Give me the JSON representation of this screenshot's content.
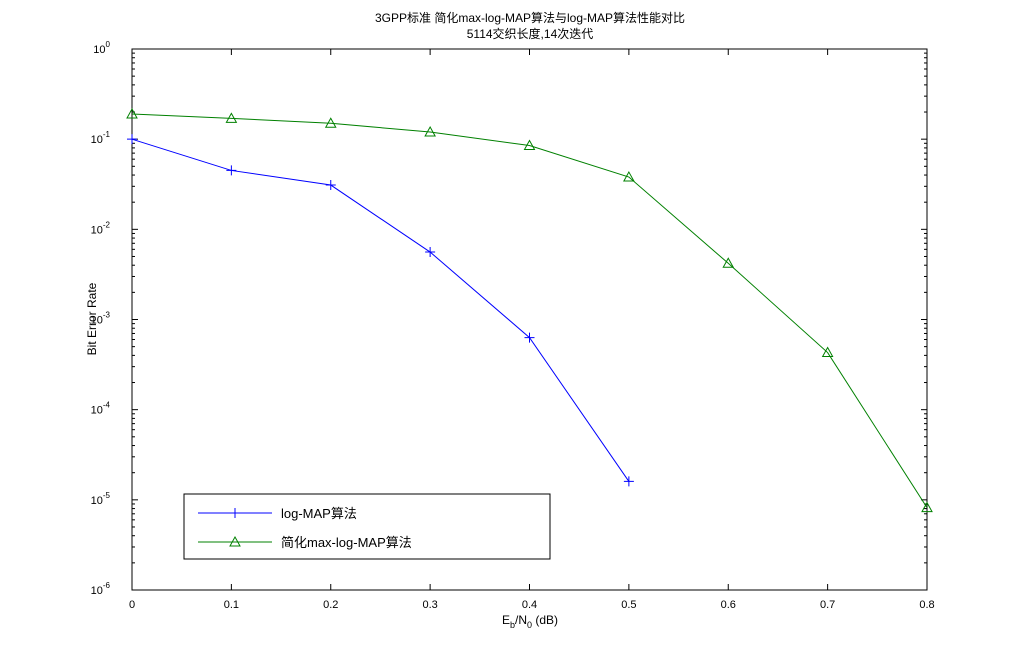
{
  "chart_data": {
    "type": "line",
    "title": "3GPP标准 简化max-log-MAP算法与log-MAP算法性能对比",
    "subtitle": "5114交织长度,14次迭代",
    "xlabel": {
      "base": "E",
      "sub1": "b",
      "mid": "/N",
      "sub2": "0",
      "tail": " (dB)"
    },
    "ylabel": "Bit Error Rate",
    "yscale": "log",
    "xlim": [
      0,
      0.8
    ],
    "ylim": [
      1e-06,
      1
    ],
    "x_ticks": [
      "0",
      "0.1",
      "0.2",
      "0.3",
      "0.4",
      "0.5",
      "0.6",
      "0.7",
      "0.8"
    ],
    "y_ticks": [
      {
        "base": "10",
        "exp": "0"
      },
      {
        "base": "10",
        "exp": "-1"
      },
      {
        "base": "10",
        "exp": "-2"
      },
      {
        "base": "10",
        "exp": "-3"
      },
      {
        "base": "10",
        "exp": "-4"
      },
      {
        "base": "10",
        "exp": "-5"
      },
      {
        "base": "10",
        "exp": "-6"
      }
    ],
    "grid": false,
    "legend_position": "bottom-left",
    "series": [
      {
        "name": "log-MAP算法",
        "color": "#0000ff",
        "marker": "plus",
        "x": [
          0,
          0.1,
          0.2,
          0.3,
          0.4,
          0.5
        ],
        "y": [
          0.1,
          0.045,
          0.031,
          0.0056,
          0.00063,
          1.6e-05
        ]
      },
      {
        "name": "简化max-log-MAP算法",
        "color": "#008000",
        "marker": "triangle",
        "x": [
          0,
          0.1,
          0.2,
          0.3,
          0.4,
          0.5,
          0.6,
          0.7,
          0.8
        ],
        "y": [
          0.19,
          0.17,
          0.15,
          0.12,
          0.085,
          0.038,
          0.0042,
          0.00043,
          8.2e-06
        ]
      }
    ]
  }
}
